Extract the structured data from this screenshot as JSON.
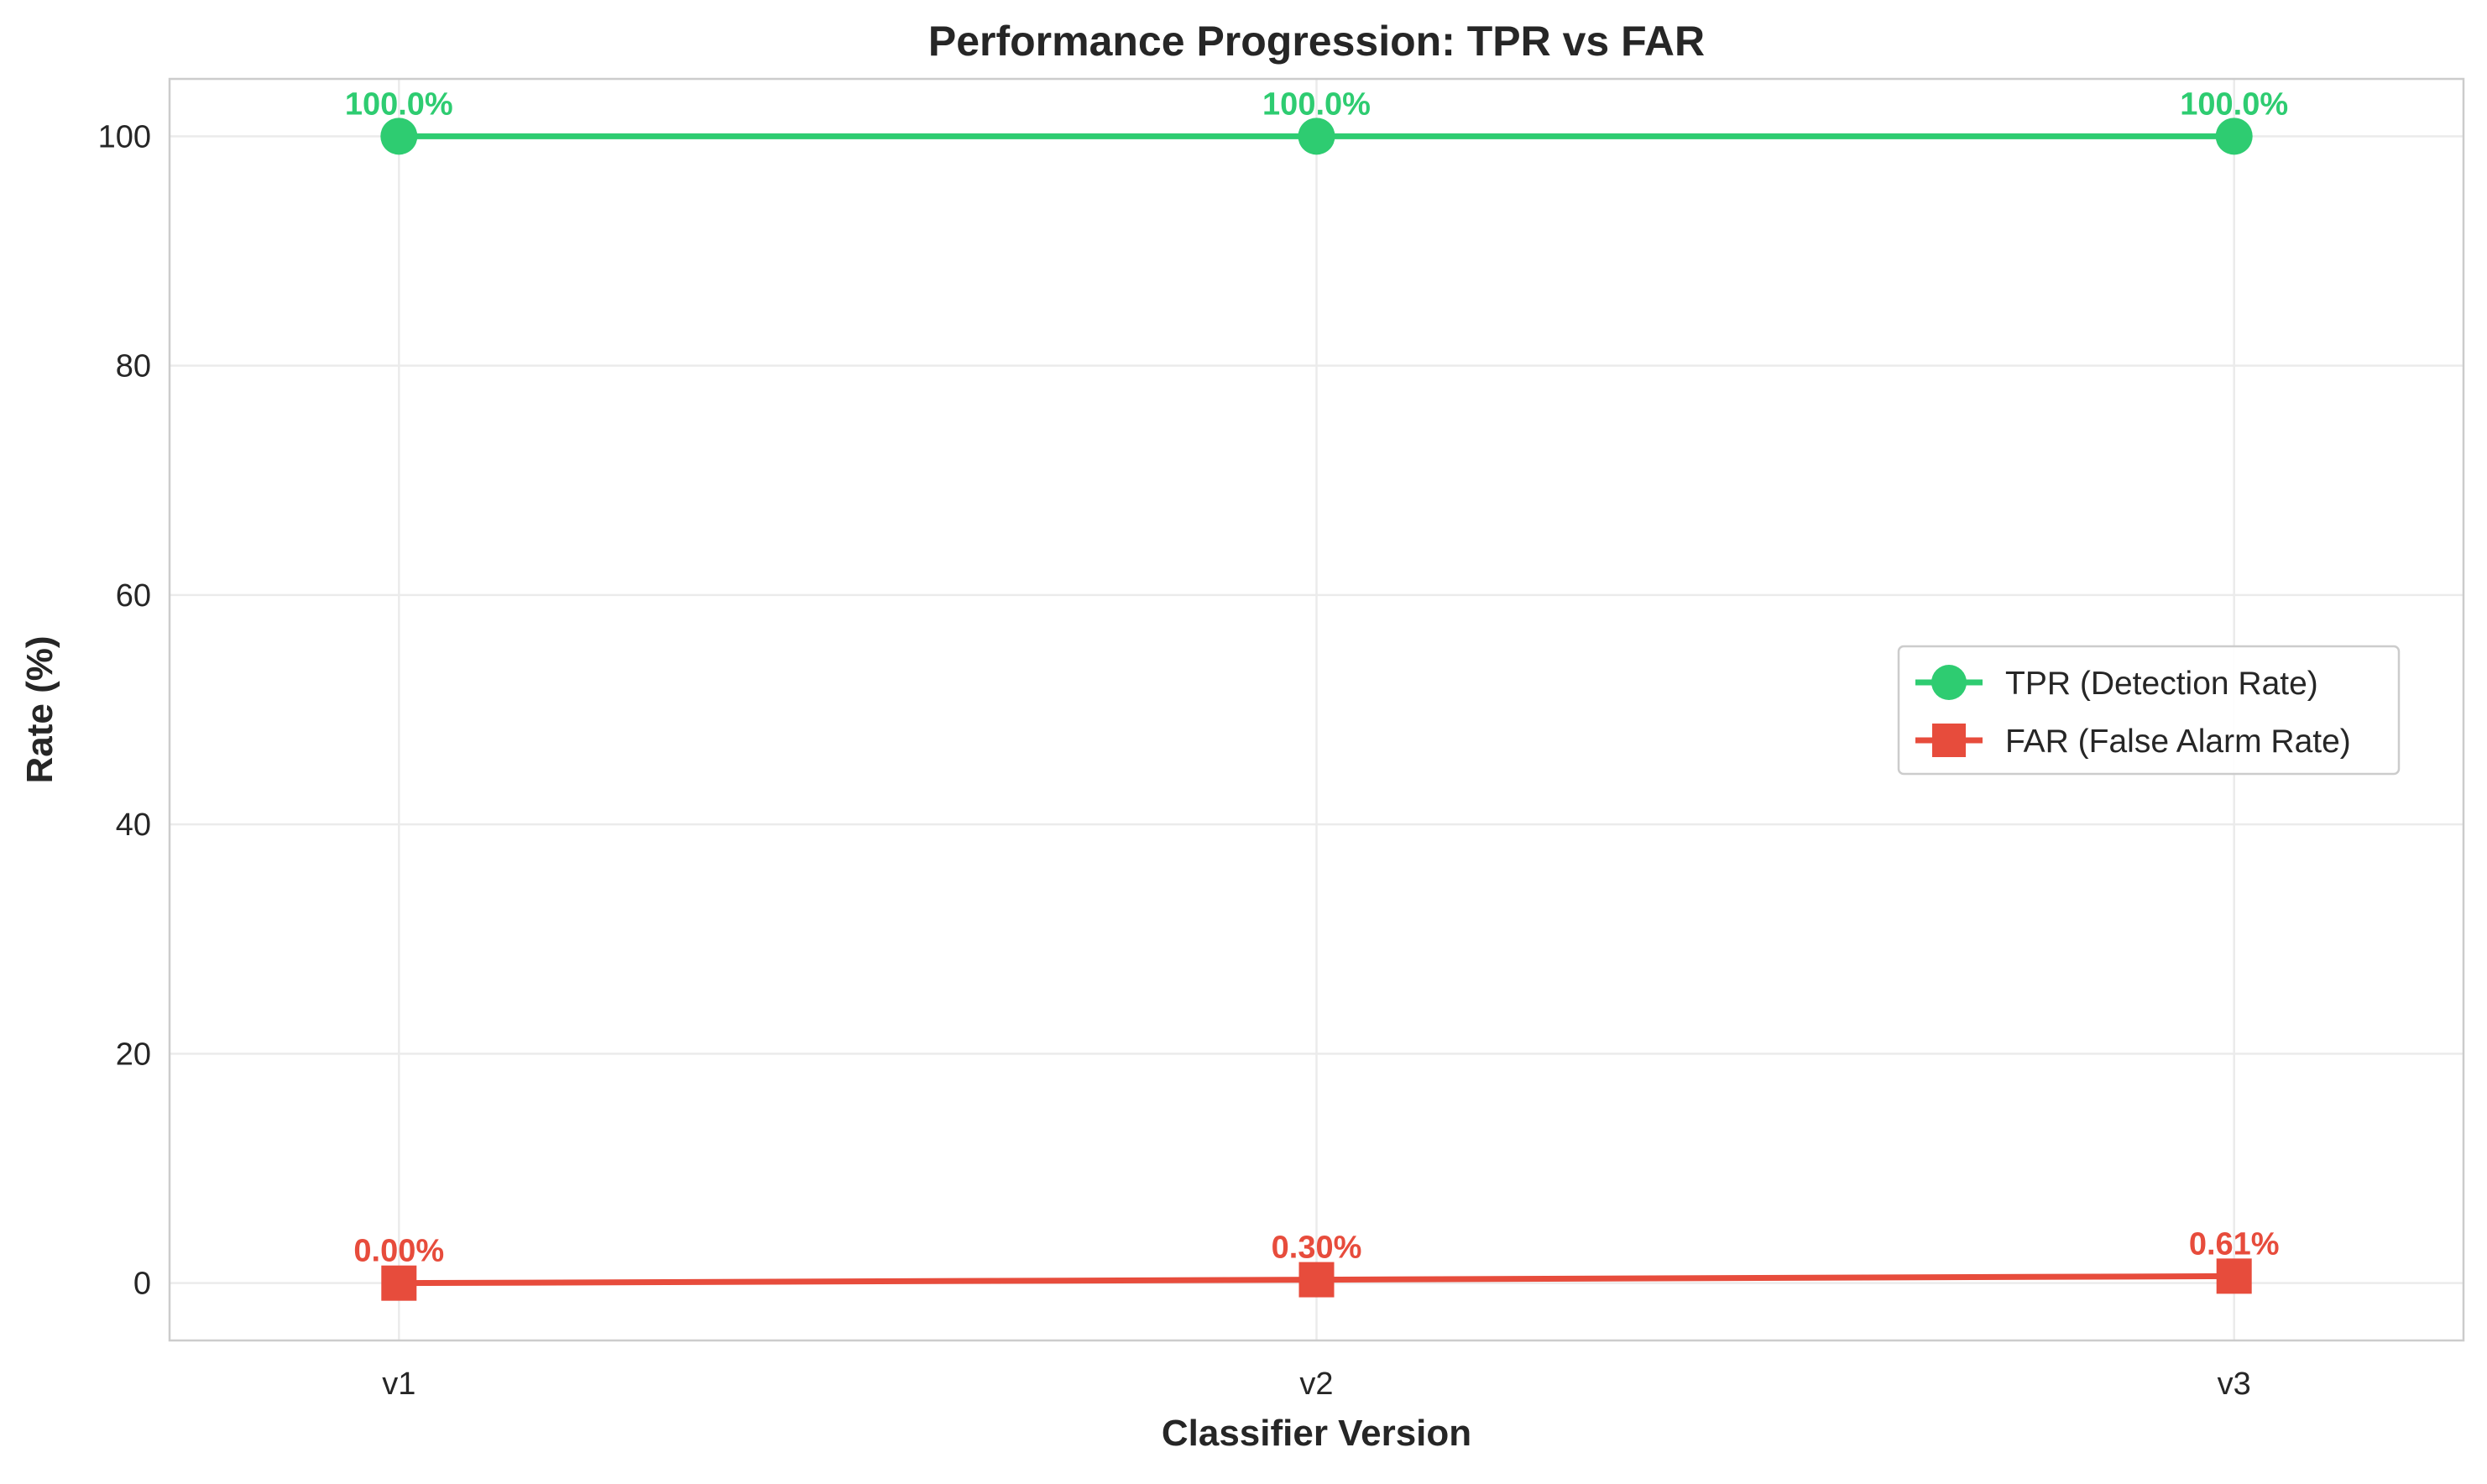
{
  "chart_data": {
    "type": "line",
    "title": "Performance Progression: TPR vs FAR",
    "xlabel": "Classifier Version",
    "ylabel": "Rate (%)",
    "categories": [
      "v1",
      "v2",
      "v3"
    ],
    "ylim": [
      -5,
      105
    ],
    "yticks": [
      0,
      20,
      40,
      60,
      80,
      100
    ],
    "grid": true,
    "legend_position": "center-right",
    "series": [
      {
        "name": "TPR (Detection Rate)",
        "values": [
          100.0,
          100.0,
          100.0
        ],
        "labels": [
          "100.0%",
          "100.0%",
          "100.0%"
        ],
        "color": "#2ecc71",
        "marker": "circle"
      },
      {
        "name": "FAR (False Alarm Rate)",
        "values": [
          0.0,
          0.3,
          0.61
        ],
        "labels": [
          "0.00%",
          "0.30%",
          "0.61%"
        ],
        "color": "#e74c3c",
        "marker": "square"
      }
    ]
  }
}
